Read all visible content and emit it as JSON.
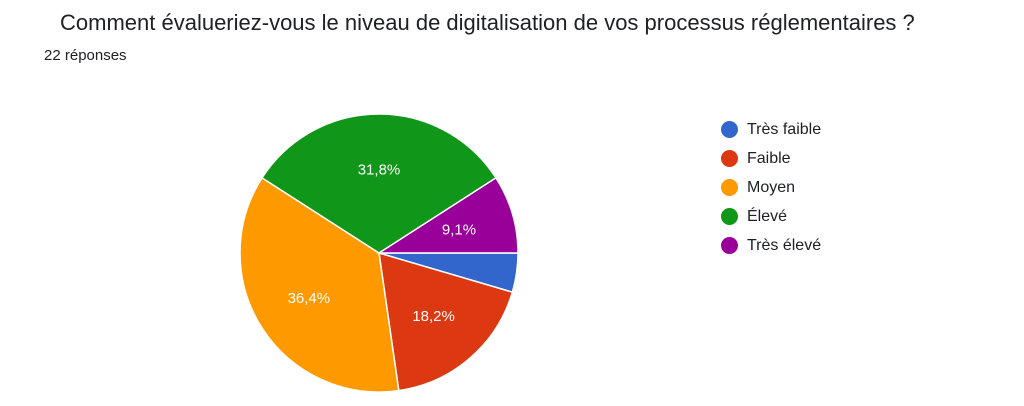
{
  "header": {
    "title": "Comment évalueriez-vous le niveau de digitalisation de vos processus réglementaires ?",
    "subtitle": "22 réponses"
  },
  "chart_data": {
    "type": "pie",
    "title": "Comment évalueriez-vous le niveau de digitalisation de vos processus réglementaires ?",
    "subtitle": "22 réponses",
    "categories": [
      "Très faible",
      "Faible",
      "Moyen",
      "Élevé",
      "Très élevé"
    ],
    "values": [
      1,
      4,
      8,
      7,
      2
    ],
    "percent_labels": [
      "",
      "18,2%",
      "36,4%",
      "31,8%",
      "9,1%"
    ],
    "colors": [
      "#3366cc",
      "#dc3912",
      "#ff9900",
      "#109618",
      "#990099"
    ],
    "legend_position": "right"
  }
}
